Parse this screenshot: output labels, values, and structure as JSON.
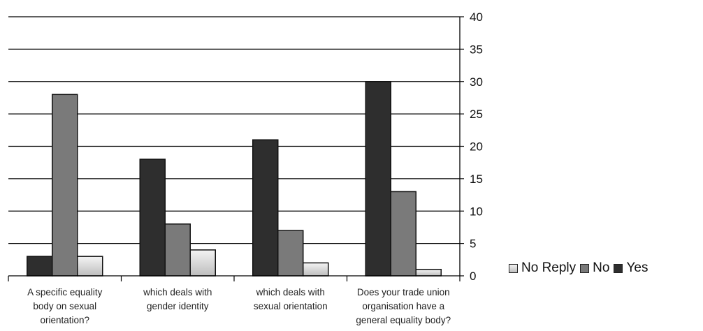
{
  "chart_data": {
    "type": "bar",
    "categories": [
      [
        "A specific equality",
        "body on sexual",
        "orientation?"
      ],
      [
        "which deals with",
        "gender identity"
      ],
      [
        "which deals with",
        "sexual orientation"
      ],
      [
        "Does your trade union",
        "organisation have a",
        "general equality body?"
      ]
    ],
    "series": [
      {
        "name": "Yes",
        "values": [
          3,
          18,
          21,
          30
        ],
        "color": "#2e2e2e"
      },
      {
        "name": "No",
        "values": [
          28,
          8,
          7,
          13
        ],
        "color": "#7a7a7a"
      },
      {
        "name": "No Reply",
        "values": [
          3,
          4,
          2,
          1
        ],
        "color": "#d8d8d8"
      }
    ],
    "ylim": [
      0,
      40
    ],
    "yticks": [
      0,
      5,
      10,
      15,
      20,
      25,
      30,
      35,
      40
    ],
    "grid": true,
    "y_axis_side": "right",
    "legend_position": "right",
    "legend_order": [
      "No Reply",
      "No",
      "Yes"
    ]
  }
}
